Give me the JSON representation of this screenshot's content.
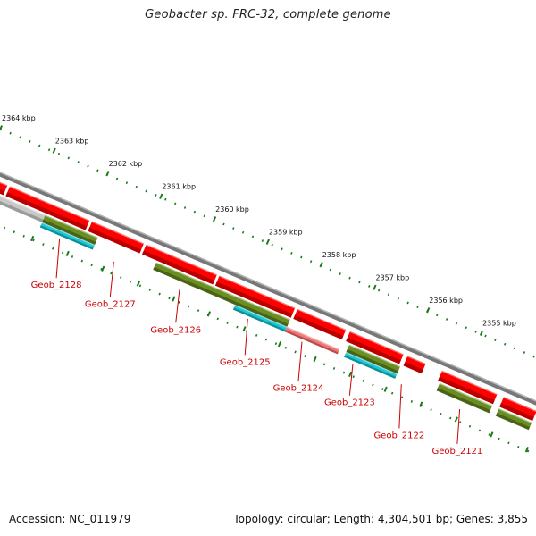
{
  "title": "Geobacter sp. FRC-32, complete genome",
  "scale_ticks": [
    {
      "kbp": 2364,
      "label": "2364 kbp"
    },
    {
      "kbp": 2363,
      "label": "2363 kbp"
    },
    {
      "kbp": 2362,
      "label": "2362 kbp"
    },
    {
      "kbp": 2361,
      "label": "2361 kbp"
    },
    {
      "kbp": 2360,
      "label": "2360 kbp"
    },
    {
      "kbp": 2359,
      "label": "2359 kbp"
    },
    {
      "kbp": 2358,
      "label": "2358 kbp"
    },
    {
      "kbp": 2357,
      "label": "2357 kbp"
    },
    {
      "kbp": 2356,
      "label": "2356 kbp"
    },
    {
      "kbp": 2355,
      "label": "2355 kbp"
    }
  ],
  "gene_labels": [
    {
      "name": "Geob_2128"
    },
    {
      "name": "Geob_2127"
    },
    {
      "name": "Geob_2126"
    },
    {
      "name": "Geob_2125"
    },
    {
      "name": "Geob_2124"
    },
    {
      "name": "Geob_2123"
    },
    {
      "name": "Geob_2122"
    },
    {
      "name": "Geob_2121"
    }
  ],
  "colors": {
    "backbone": "#777777",
    "cds": "#ff0000",
    "cds_dark": "#b80000",
    "olive": "#6b8e23",
    "olive_dark": "#4a6316",
    "cyan": "#1fc7d4",
    "cyan_dark": "#0e8f99",
    "gray": "#c8c8c8",
    "gray_dark": "#9a9a9a",
    "pink": "#f07878",
    "pink_dark": "#b84e4e",
    "tick": "#1a7a1a",
    "label": "#cc0000",
    "text": "#111111"
  },
  "footer": {
    "accession": "Accession: NC_011979",
    "topology": "Topology: circular; Length: 4,304,501 bp; Genes: 3,855"
  }
}
